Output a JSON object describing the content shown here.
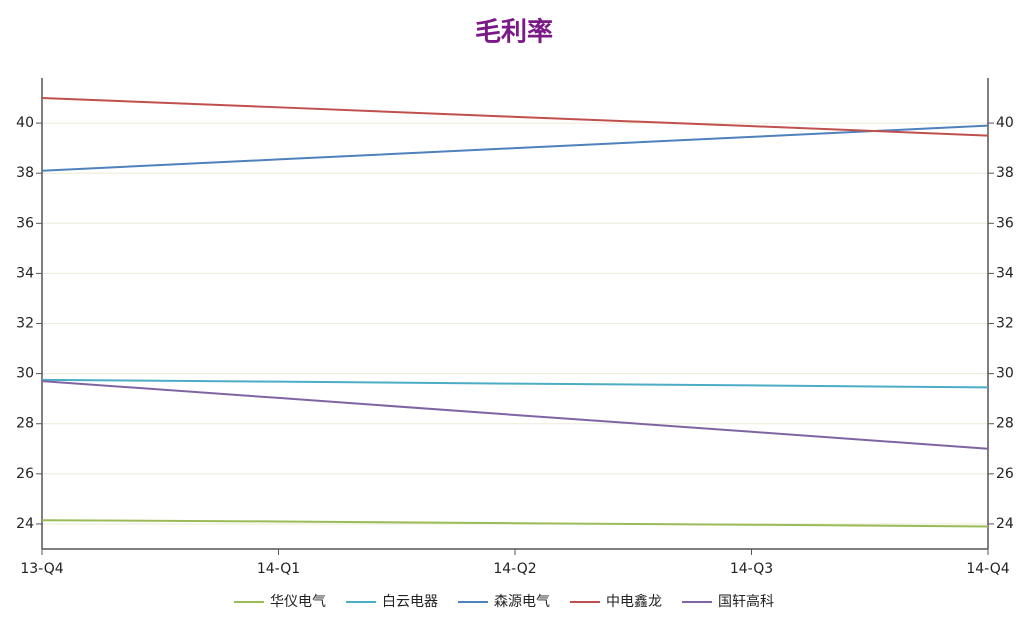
{
  "chart_data": {
    "type": "line",
    "title": "毛利率",
    "categories": [
      "13-Q4",
      "14-Q1",
      "14-Q2",
      "14-Q3",
      "14-Q4"
    ],
    "series": [
      {
        "name": "华仪电气",
        "color": "#9bbb59",
        "values": [
          24.15,
          24.1,
          24.03,
          23.97,
          23.9
        ]
      },
      {
        "name": "白云电器",
        "color": "#4bacc6",
        "values": [
          29.75,
          29.68,
          29.6,
          29.53,
          29.45
        ]
      },
      {
        "name": "森源电气",
        "color": "#4f81bd",
        "values": [
          38.1,
          38.55,
          39.0,
          39.45,
          39.9
        ]
      },
      {
        "name": "中电鑫龙",
        "color": "#c0504d",
        "values": [
          41.0,
          40.63,
          40.25,
          39.88,
          39.5
        ]
      },
      {
        "name": "国轩高科",
        "color": "#8064a2",
        "values": [
          29.7,
          29.03,
          28.35,
          27.68,
          27.0
        ]
      }
    ],
    "ylim": [
      23,
      41.8
    ],
    "yticks": [
      24,
      26,
      28,
      30,
      32,
      34,
      36,
      38,
      40
    ],
    "y2lim": [
      23,
      41.8
    ],
    "y2ticks": [
      24,
      26,
      28,
      30,
      32,
      34,
      36,
      38,
      40
    ],
    "grid": true,
    "legend": "bottom"
  }
}
